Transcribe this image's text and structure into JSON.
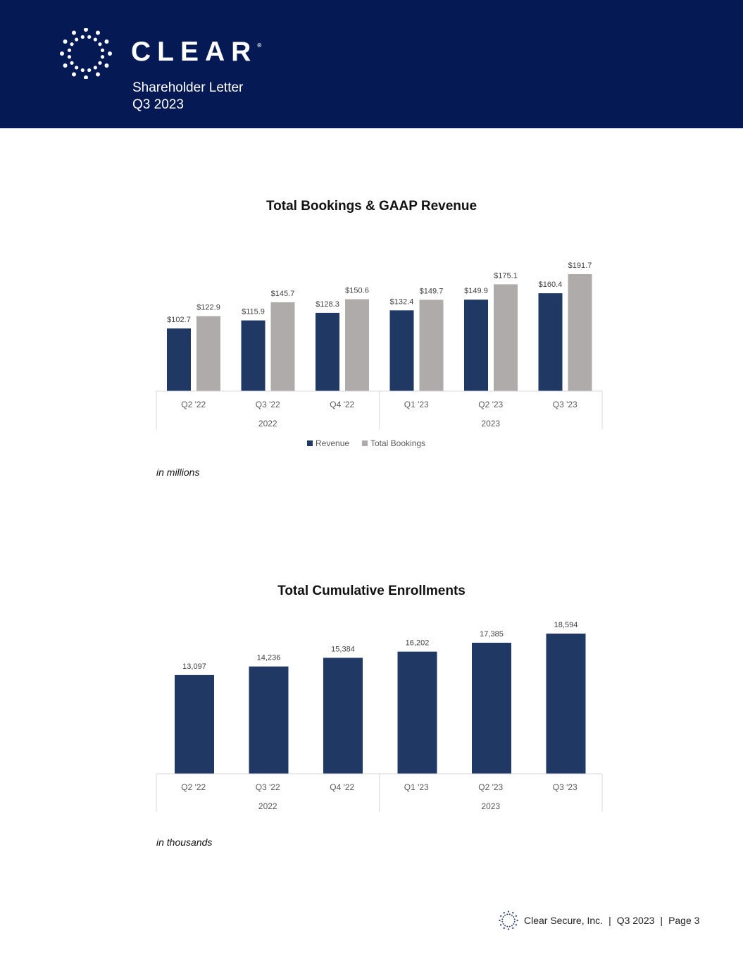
{
  "header": {
    "logo_text": "CLEAR",
    "registered": "®",
    "subtitle_line1": "Shareholder Letter",
    "subtitle_line2": "Q3 2023"
  },
  "colors": {
    "header_bg": "#051a55",
    "revenue": "#1f3864",
    "bookings": "#afabab"
  },
  "chart_data": [
    {
      "type": "bar",
      "title": "Total Bookings & GAAP Revenue",
      "categories": [
        "Q2 '22",
        "Q3 '22",
        "Q4 '22",
        "Q1 '23",
        "Q2 '23",
        "Q3 '23"
      ],
      "groups": [
        {
          "label": "2022",
          "span": 3
        },
        {
          "label": "2023",
          "span": 3
        }
      ],
      "series": [
        {
          "name": "Revenue",
          "values": [
            102.7,
            115.9,
            128.3,
            132.4,
            149.9,
            160.4
          ],
          "labels": [
            "$102.7",
            "$115.9",
            "$128.3",
            "$132.4",
            "$149.9",
            "$160.4"
          ]
        },
        {
          "name": "Total Bookings",
          "values": [
            122.9,
            145.7,
            150.6,
            149.7,
            175.1,
            191.7
          ],
          "labels": [
            "$122.9",
            "$145.7",
            "$150.6",
            "$149.7",
            "$175.1",
            "$191.7"
          ]
        }
      ],
      "ylim": [
        0,
        220
      ],
      "legend": "bottom",
      "note": "in millions"
    },
    {
      "type": "bar",
      "title": "Total Cumulative Enrollments",
      "categories": [
        "Q2 '22",
        "Q3 '22",
        "Q4 '22",
        "Q1 '23",
        "Q2 '23",
        "Q3 '23"
      ],
      "groups": [
        {
          "label": "2022",
          "span": 3
        },
        {
          "label": "2023",
          "span": 3
        }
      ],
      "series": [
        {
          "name": "Enrollments",
          "values": [
            13097,
            14236,
            15384,
            16202,
            17385,
            18594
          ],
          "labels": [
            "13,097",
            "14,236",
            "15,384",
            "16,202",
            "17,385",
            "18,594"
          ]
        }
      ],
      "ylim": [
        0,
        20000
      ],
      "note": "in thousands"
    }
  ],
  "footer": {
    "company": "Clear Secure, Inc.",
    "sep1": "|",
    "period": "Q3 2023",
    "sep2": "|",
    "page": "Page 3"
  }
}
